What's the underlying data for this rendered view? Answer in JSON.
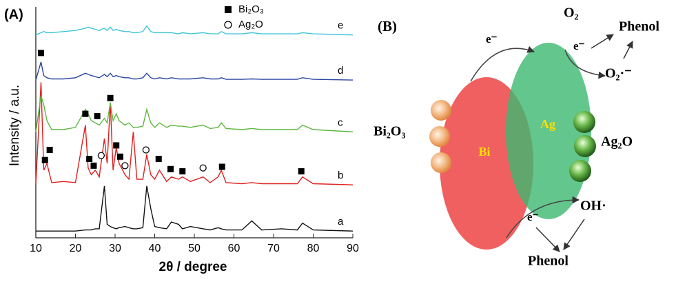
{
  "chart_data": {
    "type": "line",
    "panel_label": "(A)",
    "x_label": "2θ / degree",
    "y_label": "Intensity / a.u.",
    "xlim": [
      10,
      90
    ],
    "xticks": [
      10,
      20,
      30,
      40,
      50,
      60,
      70,
      80,
      90
    ],
    "ylim": [
      0,
      100
    ],
    "x": [
      10,
      11.3,
      12,
      12.8,
      14,
      17,
      20,
      22.5,
      23.2,
      24,
      25,
      26,
      27.3,
      28,
      28.8,
      29.5,
      30.3,
      31,
      32.5,
      33.5,
      34.6,
      35.5,
      37,
      38,
      39,
      40,
      41.2,
      43,
      44.2,
      46,
      47,
      49,
      52.2,
      54,
      56,
      56.8,
      58,
      62,
      64.5,
      67,
      72,
      76,
      77.3,
      80,
      90
    ],
    "series": [
      {
        "name": "a",
        "color": "#111111",
        "values": [
          3,
          3,
          3,
          3,
          3,
          3,
          3,
          3.5,
          3.5,
          3.5,
          4,
          4,
          23,
          6,
          5,
          4.5,
          4,
          4.5,
          5,
          4.5,
          4,
          4,
          4.5,
          23,
          13,
          5,
          4.5,
          4,
          7,
          6,
          4,
          5,
          4,
          3.5,
          4.5,
          4,
          3.5,
          3.5,
          7.5,
          3.5,
          4,
          3.5,
          6.5,
          3.5,
          3
        ]
      },
      {
        "name": "b",
        "color": "#e02020",
        "values": [
          24,
          69,
          30,
          33,
          24.5,
          25,
          24.5,
          50,
          31,
          28,
          30,
          27,
          44,
          33,
          60,
          30,
          40,
          33,
          28,
          26,
          47,
          26,
          26,
          37,
          28,
          26,
          30,
          25,
          27,
          26,
          27,
          25,
          27,
          24.5,
          27,
          30,
          24.5,
          24,
          24.5,
          24,
          24,
          24,
          27,
          24,
          23.5
        ]
      },
      {
        "name": "c",
        "color": "#5cb840",
        "values": [
          47,
          63,
          59,
          52,
          48,
          48,
          49,
          57,
          55,
          52,
          51,
          50,
          53,
          51,
          60,
          52,
          55,
          52,
          50,
          51,
          49,
          49,
          49.5,
          57,
          51,
          49,
          51,
          49,
          50,
          49.5,
          49.5,
          49,
          50,
          48.5,
          49,
          51,
          48.5,
          48,
          48.5,
          48,
          48,
          48,
          50,
          48,
          47
        ]
      },
      {
        "name": "d",
        "color": "#2a44a0",
        "values": [
          70,
          78,
          72,
          71,
          70.5,
          70.5,
          71,
          73,
          72.5,
          72,
          71.5,
          71,
          72.5,
          71.5,
          73,
          71.5,
          72,
          71.5,
          71,
          71,
          70.5,
          70.5,
          71,
          73,
          71,
          70.5,
          71,
          70.5,
          71,
          70.5,
          70.5,
          70.5,
          71,
          70.5,
          70.5,
          71,
          70.3,
          70.3,
          70.5,
          70.3,
          70.3,
          70.3,
          71,
          70.3,
          70
        ]
      },
      {
        "name": "e",
        "color": "#40c4d8",
        "values": [
          90,
          91,
          91.5,
          91,
          91,
          91.5,
          92,
          93,
          93.5,
          93,
          92.5,
          92,
          93,
          92,
          93.5,
          92,
          92.5,
          92,
          91.5,
          91.5,
          91,
          91,
          91.5,
          94,
          91.5,
          91,
          91,
          91,
          91,
          90.5,
          91,
          90.5,
          91,
          90.5,
          90.5,
          91.5,
          90.5,
          90.5,
          91,
          90.5,
          90.5,
          90.5,
          91,
          90.5,
          90
        ]
      }
    ],
    "legend": [
      {
        "label": "Bi₂O₃",
        "marker": "square"
      },
      {
        "label": "Ag₂O",
        "marker": "circle"
      }
    ],
    "annotations": {
      "square": [
        [
          12.3,
          34.5
        ],
        [
          13.5,
          39
        ],
        [
          23.5,
          35
        ],
        [
          24.6,
          32
        ],
        [
          30.3,
          41
        ],
        [
          31.3,
          36
        ],
        [
          41,
          35
        ],
        [
          44,
          30.5
        ],
        [
          47,
          29.5
        ],
        [
          57,
          31.5
        ],
        [
          77,
          29.5
        ],
        [
          22.5,
          55
        ],
        [
          25.5,
          54
        ],
        [
          28.8,
          62
        ],
        [
          11.3,
          82
        ]
      ],
      "circle": [
        [
          26.5,
          36.5
        ],
        [
          32.5,
          32
        ],
        [
          37.8,
          39
        ],
        [
          52.2,
          31
        ]
      ]
    }
  },
  "diagram": {
    "panel_label": "(B)",
    "e_top": "e⁻",
    "o2": "O₂",
    "e_right": "e⁻",
    "phenol_top": "Phenol",
    "superoxide": "O₂·⁻",
    "bi2o3": "Bi₂O₃",
    "bi": "Bi",
    "ag": "Ag",
    "ag2o": "Ag₂O",
    "oh": "OH·",
    "e_bottom": "e⁻",
    "phenol_bottom": "Phenol"
  }
}
